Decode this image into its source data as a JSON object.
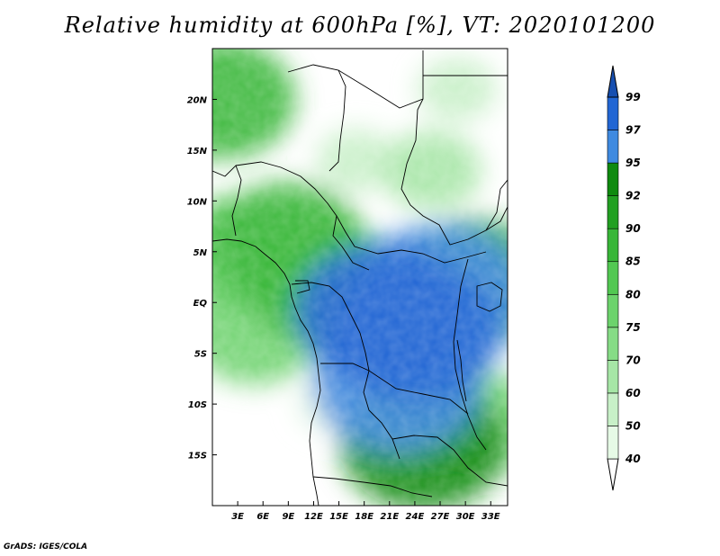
{
  "title": "Relative humidity at 600hPa [%], VT: 2020101200",
  "credit": "GrADS: IGES/COLA",
  "chart_data": {
    "type": "contour-map",
    "variable": "Relative humidity",
    "level": "600hPa",
    "units": "%",
    "valid_time": "2020101200",
    "lon_range": [
      0,
      35
    ],
    "lat_range": [
      -20,
      25
    ],
    "x_ticks": [
      {
        "value": 3,
        "label": "3E"
      },
      {
        "value": 6,
        "label": "6E"
      },
      {
        "value": 9,
        "label": "9E"
      },
      {
        "value": 12,
        "label": "12E"
      },
      {
        "value": 15,
        "label": "15E"
      },
      {
        "value": 18,
        "label": "18E"
      },
      {
        "value": 21,
        "label": "21E"
      },
      {
        "value": 24,
        "label": "24E"
      },
      {
        "value": 27,
        "label": "27E"
      },
      {
        "value": 30,
        "label": "30E"
      },
      {
        "value": 33,
        "label": "33E"
      }
    ],
    "y_ticks": [
      {
        "value": 20,
        "label": "20N"
      },
      {
        "value": 15,
        "label": "15N"
      },
      {
        "value": 10,
        "label": "10N"
      },
      {
        "value": 5,
        "label": "5N"
      },
      {
        "value": 0,
        "label": "EQ"
      },
      {
        "value": -5,
        "label": "5S"
      },
      {
        "value": -10,
        "label": "10S"
      },
      {
        "value": -15,
        "label": "15S"
      }
    ],
    "colorbar": {
      "levels": [
        {
          "label": "40",
          "color": "#e6fae6"
        },
        {
          "label": "50",
          "color": "#c8f0c8"
        },
        {
          "label": "60",
          "color": "#a6e6a6"
        },
        {
          "label": "70",
          "color": "#86dc86"
        },
        {
          "label": "75",
          "color": "#6cd36c"
        },
        {
          "label": "80",
          "color": "#52c852"
        },
        {
          "label": "85",
          "color": "#38b638"
        },
        {
          "label": "90",
          "color": "#22a022"
        },
        {
          "label": "92",
          "color": "#0f8a0f"
        },
        {
          "label": "95",
          "color": "#3f8ae0"
        },
        {
          "label": "97",
          "color": "#2266d4"
        },
        {
          "label": "99",
          "color": "#174fb0"
        }
      ],
      "below_color": "#ffffff",
      "above_color": "#174fb0"
    },
    "fields": [
      {
        "lon": 24,
        "lat": -3,
        "value": 97
      },
      {
        "lon": 20,
        "lat": -1,
        "value": 97
      },
      {
        "lon": 27,
        "lat": 1,
        "value": 96
      },
      {
        "lon": 22,
        "lat": -8,
        "value": 95
      },
      {
        "lon": 25,
        "lat": -14,
        "value": 93
      },
      {
        "lon": 31,
        "lat": 2,
        "value": 90
      },
      {
        "lon": 13,
        "lat": 2,
        "value": 88
      },
      {
        "lon": 9,
        "lat": 6,
        "value": 85
      },
      {
        "lon": 3,
        "lat": 5,
        "value": 80
      },
      {
        "lon": 5,
        "lat": -3,
        "value": 75
      },
      {
        "lon": 26,
        "lat": 13,
        "value": 60
      },
      {
        "lon": 17,
        "lat": 14,
        "value": 50
      },
      {
        "lon": 29,
        "lat": 21,
        "value": 50
      },
      {
        "lon": 1,
        "lat": 20,
        "value": 85
      },
      {
        "lon": 14,
        "lat": -10,
        "value": 45
      },
      {
        "lon": 32,
        "lat": -12,
        "value": 75
      }
    ]
  }
}
